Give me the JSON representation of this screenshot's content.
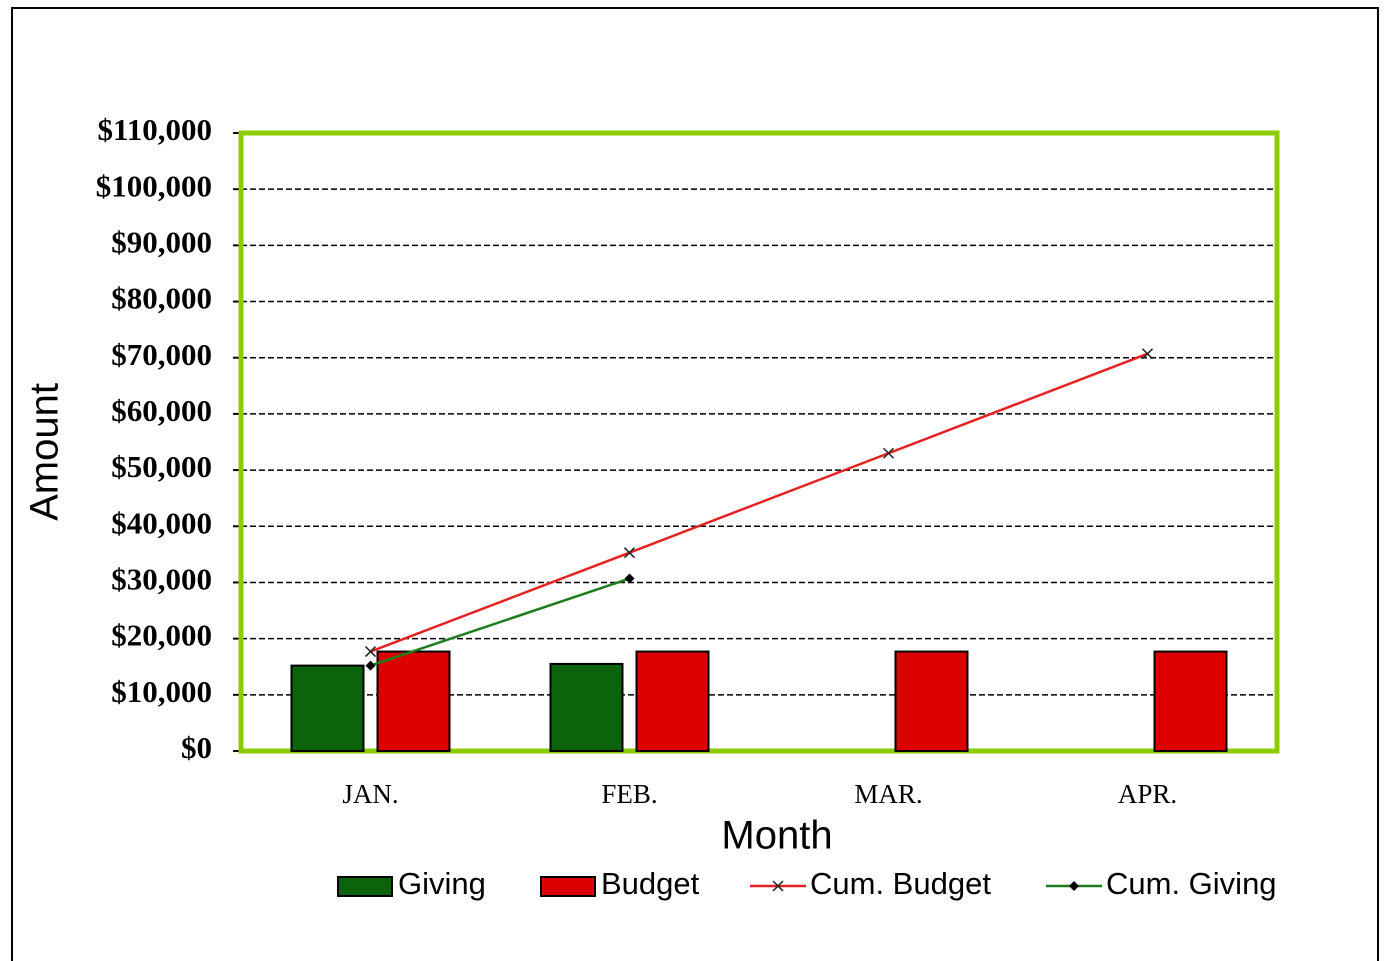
{
  "chart_data": {
    "type": "bar",
    "x_label": "Month",
    "y_label": "Amount",
    "categories": [
      "JAN.",
      "FEB.",
      "MAR.",
      "APR."
    ],
    "series": [
      {
        "name": "Giving",
        "type": "bar",
        "color": "#0b640b",
        "values": [
          15200,
          15500,
          null,
          null
        ]
      },
      {
        "name": "Budget",
        "type": "bar",
        "color": "#dd0000",
        "values": [
          17700,
          17700,
          17700,
          17700
        ]
      },
      {
        "name": "Cum. Budget",
        "type": "line",
        "marker": "x",
        "color": "#e52222",
        "values": [
          17700,
          35300,
          53000,
          70700
        ]
      },
      {
        "name": "Cum. Giving",
        "type": "line",
        "marker": "diamond",
        "color": "#1e7e1e",
        "values": [
          15200,
          30700,
          null,
          null
        ]
      }
    ],
    "ylim": [
      0,
      110000
    ],
    "yticks": [
      {
        "value": 0,
        "label": "$0"
      },
      {
        "value": 10000,
        "label": "$10,000"
      },
      {
        "value": 20000,
        "label": "$20,000"
      },
      {
        "value": 30000,
        "label": "$30,000"
      },
      {
        "value": 40000,
        "label": "$40,000"
      },
      {
        "value": 50000,
        "label": "$50,000"
      },
      {
        "value": 60000,
        "label": "$60,000"
      },
      {
        "value": 70000,
        "label": "$70,000"
      },
      {
        "value": 80000,
        "label": "$80,000"
      },
      {
        "value": 90000,
        "label": "$90,000"
      },
      {
        "value": 100000,
        "label": "$100,000"
      },
      {
        "value": 110000,
        "label": "$110,000"
      }
    ],
    "grid": true,
    "legend": "bottom",
    "plot_border_color": "#8ccc00"
  }
}
